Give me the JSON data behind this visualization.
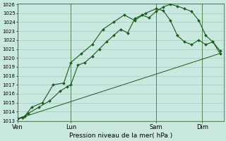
{
  "title": "Pression niveau de la mer( hPa )",
  "bg_color": "#c8e8e0",
  "grid_color": "#9bbfb8",
  "line_color": "#1a5c1a",
  "ylim": [
    1013,
    1026
  ],
  "yticks": [
    1013,
    1014,
    1015,
    1016,
    1017,
    1018,
    1019,
    1020,
    1021,
    1022,
    1023,
    1024,
    1025,
    1026
  ],
  "day_labels": [
    "Ven",
    "Lun",
    "Sam",
    "Dim"
  ],
  "day_positions": [
    0,
    30,
    78,
    104
  ],
  "line1_x": [
    0,
    3,
    6,
    12,
    18,
    24,
    28,
    30,
    34,
    38,
    42,
    46,
    50,
    54,
    58,
    62,
    66,
    70,
    74,
    78,
    82,
    86,
    90,
    94,
    98,
    102,
    106,
    110,
    114
  ],
  "line1_y": [
    1013.2,
    1013.3,
    1013.8,
    1014.5,
    1015.2,
    1016.3,
    1016.8,
    1017.0,
    1019.2,
    1019.5,
    1020.2,
    1021.0,
    1021.8,
    1022.5,
    1023.2,
    1022.8,
    1024.4,
    1024.8,
    1024.5,
    1025.2,
    1025.7,
    1026.0,
    1025.8,
    1025.5,
    1025.2,
    1024.2,
    1022.5,
    1021.8,
    1020.8
  ],
  "line2_x": [
    0,
    4,
    8,
    14,
    20,
    26,
    30,
    36,
    42,
    48,
    54,
    60,
    66,
    72,
    78,
    82,
    86,
    90,
    94,
    98,
    102,
    106,
    110,
    114
  ],
  "line2_y": [
    1013.2,
    1013.5,
    1014.5,
    1015.0,
    1017.0,
    1017.2,
    1019.5,
    1020.5,
    1021.5,
    1023.2,
    1024.0,
    1024.8,
    1024.2,
    1025.0,
    1025.5,
    1025.3,
    1024.2,
    1022.5,
    1021.8,
    1021.5,
    1022.0,
    1021.5,
    1021.8,
    1020.5
  ],
  "line3_x": [
    0,
    114
  ],
  "line3_y": [
    1013.2,
    1020.5
  ],
  "xlim": [
    0,
    116
  ],
  "figwidth": 3.2,
  "figheight": 2.0,
  "dpi": 100
}
